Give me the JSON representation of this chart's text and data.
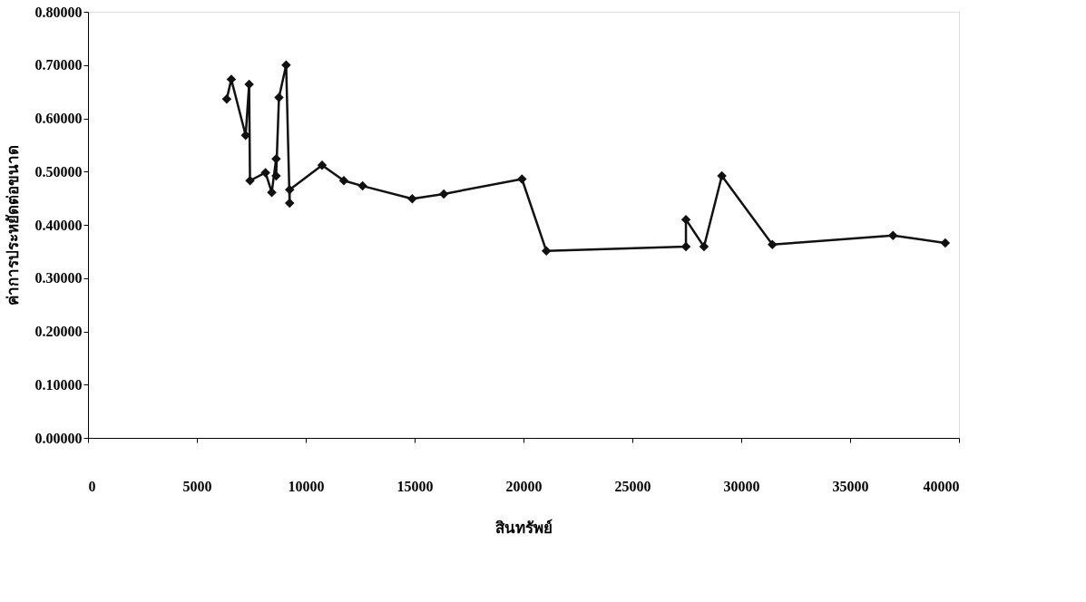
{
  "chart_data": {
    "type": "line",
    "xlabel": "สินทรัพย์",
    "ylabel": "ค่าการประหยัดต่อขนาด",
    "x": [
      6370,
      6580,
      7240,
      7400,
      7440,
      8150,
      8440,
      8640,
      8640,
      8770,
      9100,
      9260,
      9260,
      10750,
      11750,
      12610,
      14890,
      16340,
      19930,
      21050,
      27460,
      27460,
      28290,
      29110,
      31430,
      36970,
      39370
    ],
    "series": [
      {
        "color": "#111111",
        "values": [
          0.636,
          0.673,
          0.568,
          0.664,
          0.483,
          0.498,
          0.461,
          0.524,
          0.492,
          0.639,
          0.7,
          0.441,
          0.466,
          0.512,
          0.483,
          0.473,
          0.449,
          0.458,
          0.486,
          0.351,
          0.359,
          0.41,
          0.359,
          0.492,
          0.363,
          0.38,
          0.366
        ]
      }
    ],
    "xlim": [
      0,
      40000
    ],
    "xticks": [
      0,
      5000,
      10000,
      15000,
      20000,
      25000,
      30000,
      35000,
      40000
    ],
    "ylim": [
      0,
      0.8
    ],
    "yticks": [
      {
        "value": 0,
        "label": "0.00000"
      },
      {
        "value": 0.1,
        "label": "0.10000"
      },
      {
        "value": 0.2,
        "label": "0.20000"
      },
      {
        "value": 0.3,
        "label": "0.30000"
      },
      {
        "value": 0.4,
        "label": "0.40000"
      },
      {
        "value": 0.5,
        "label": "0.50000"
      },
      {
        "value": 0.6,
        "label": "0.60000"
      },
      {
        "value": 0.7,
        "label": "0.70000"
      },
      {
        "value": 0.8,
        "label": "0.80000"
      }
    ],
    "grid": false,
    "marker": "diamond",
    "line_style": "solid"
  }
}
